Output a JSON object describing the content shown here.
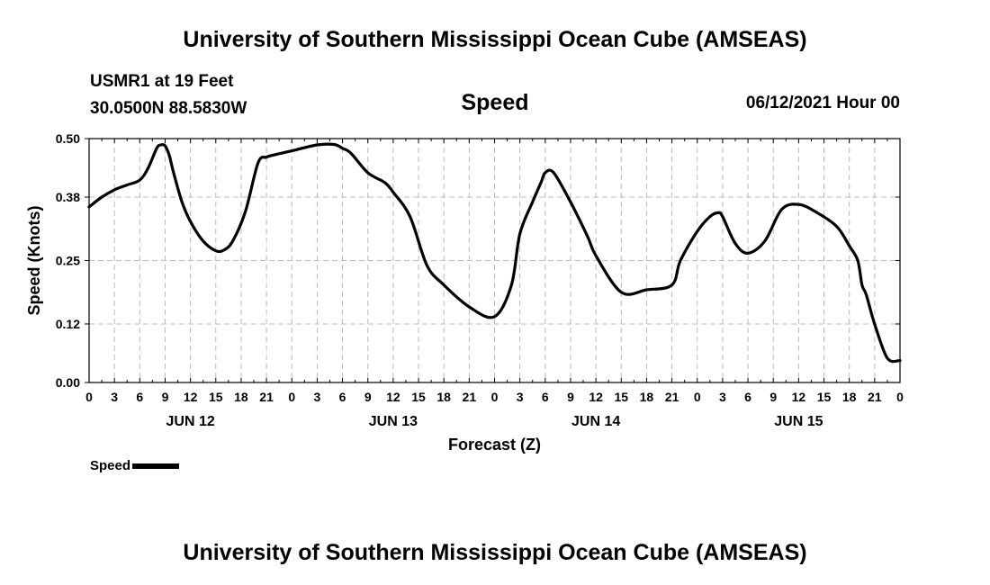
{
  "header": {
    "title": "University of Southern Mississippi Ocean Cube (AMSEAS)",
    "station": "USMR1 at 19 Feet",
    "coords": "30.0500N  88.5830W",
    "plot_title": "Speed",
    "date": "06/12/2021 Hour 00"
  },
  "footer": {
    "title": "University of Southern Mississippi Ocean Cube (AMSEAS)"
  },
  "legend": {
    "label": "Speed"
  },
  "chart_data": {
    "type": "line",
    "title": "Speed",
    "xlabel": "Forecast (Z)",
    "ylabel": "Speed (Knots)",
    "xlim": [
      0,
      96
    ],
    "ylim": [
      0,
      0.5
    ],
    "yticks": [
      0.0,
      0.12,
      0.25,
      0.38,
      0.5
    ],
    "ytick_labels": [
      "0.00",
      "0.12",
      "0.25",
      "0.38",
      "0.50"
    ],
    "xticks": [
      0,
      3,
      6,
      9,
      12,
      15,
      18,
      21,
      24,
      27,
      30,
      33,
      36,
      39,
      42,
      45,
      48,
      51,
      54,
      57,
      60,
      63,
      66,
      69,
      72,
      75,
      78,
      81,
      84,
      87,
      90,
      93,
      96
    ],
    "xtick_labels": [
      "0",
      "3",
      "6",
      "9",
      "12",
      "15",
      "18",
      "21",
      "0",
      "3",
      "6",
      "9",
      "12",
      "15",
      "18",
      "21",
      "0",
      "3",
      "6",
      "9",
      "12",
      "15",
      "18",
      "21",
      "0",
      "3",
      "6",
      "9",
      "12",
      "15",
      "18",
      "21",
      "0"
    ],
    "day_labels": [
      {
        "label": "JUN 12",
        "x": 12
      },
      {
        "label": "JUN 13",
        "x": 36
      },
      {
        "label": "JUN 14",
        "x": 60
      },
      {
        "label": "JUN 15",
        "x": 84
      }
    ],
    "grid": true,
    "series": [
      {
        "name": "Speed",
        "x": [
          0,
          1.5,
          3,
          4.5,
          6,
          7,
          8,
          8.5,
          9,
          9.5,
          10,
          11,
          12,
          13.5,
          15,
          16,
          17,
          18.5,
          20,
          21,
          22,
          24,
          27,
          29,
          30,
          31,
          33,
          35,
          36,
          38,
          40,
          42,
          45,
          48,
          50,
          51,
          52.5,
          53.5,
          54,
          55,
          57,
          59,
          60,
          63,
          66,
          69,
          70,
          72,
          73.5,
          74.5,
          75,
          76.5,
          78,
          80,
          82,
          84,
          86,
          88.5,
          90,
          91,
          91.5,
          92,
          93,
          94.5,
          96
        ],
        "values": [
          0.36,
          0.38,
          0.395,
          0.405,
          0.415,
          0.44,
          0.48,
          0.487,
          0.485,
          0.465,
          0.43,
          0.37,
          0.33,
          0.29,
          0.27,
          0.272,
          0.29,
          0.35,
          0.45,
          0.462,
          0.467,
          0.475,
          0.487,
          0.488,
          0.48,
          0.47,
          0.43,
          0.41,
          0.39,
          0.34,
          0.24,
          0.2,
          0.155,
          0.135,
          0.2,
          0.305,
          0.37,
          0.41,
          0.43,
          0.43,
          0.37,
          0.3,
          0.26,
          0.185,
          0.19,
          0.2,
          0.25,
          0.31,
          0.34,
          0.348,
          0.34,
          0.285,
          0.265,
          0.29,
          0.355,
          0.365,
          0.35,
          0.32,
          0.28,
          0.25,
          0.2,
          0.18,
          0.12,
          0.05,
          0.045
        ]
      }
    ]
  }
}
